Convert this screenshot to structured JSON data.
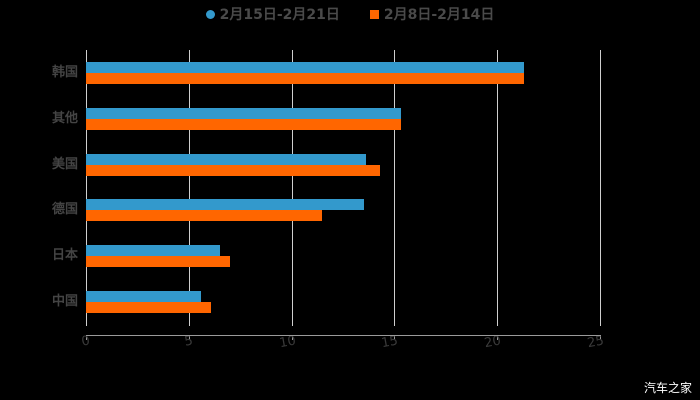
{
  "chart_data": {
    "type": "bar",
    "orientation": "horizontal",
    "title": "",
    "categories": [
      "韩国",
      "其他",
      "美国",
      "德国",
      "日本",
      "中国"
    ],
    "series": [
      {
        "name": "2月15日-2月21日",
        "color": "#3399CC",
        "values": [
          21.3,
          15.3,
          13.6,
          13.5,
          6.5,
          5.6
        ]
      },
      {
        "name": "2月8日-2月14日",
        "color": "#FF6600",
        "values": [
          21.3,
          15.3,
          14.3,
          11.5,
          7.0,
          6.1
        ]
      }
    ],
    "xlabel": "",
    "ylabel": "",
    "xlim": [
      0,
      25
    ],
    "xticks": [
      "0",
      "5",
      "10",
      "15",
      "20",
      "25"
    ],
    "grid": true,
    "legend_position": "top"
  },
  "legend": {
    "items": [
      {
        "label": "2月15日-2月21日",
        "color": "#3399CC",
        "marker": "circle"
      },
      {
        "label": "2月8日-2月14日",
        "color": "#FF6600",
        "marker": "square"
      }
    ]
  },
  "watermark": "汽车之家"
}
